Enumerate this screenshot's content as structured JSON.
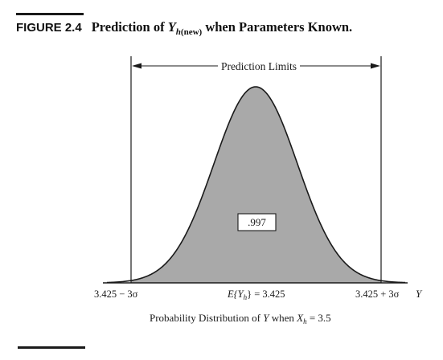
{
  "figure": {
    "label": "FIGURE 2.4",
    "title_prefix": "Prediction of ",
    "title_var": "Y",
    "title_sub_h": "h",
    "title_sub_new": "(new)",
    "title_suffix": " when Parameters Known."
  },
  "diagram": {
    "limits_label": "Prediction Limits",
    "area_label": ".997",
    "lower_limit_label": "3.425 − 3σ",
    "mean_label_prefix": "E{Y",
    "mean_label_sub": "h",
    "mean_label_suffix": "} = 3.425",
    "upper_limit_label": "3.425 + 3σ",
    "axis_label": "Y",
    "distribution_caption_prefix": "Probability Distribution of ",
    "distribution_caption_var": "Y",
    "distribution_caption_mid": " when ",
    "distribution_caption_xvar": "X",
    "distribution_caption_sub": "h",
    "distribution_caption_suffix": " = 3.5"
  },
  "colors": {
    "shaded_area": "#a9a9a9",
    "ink": "#1a1a1a"
  }
}
